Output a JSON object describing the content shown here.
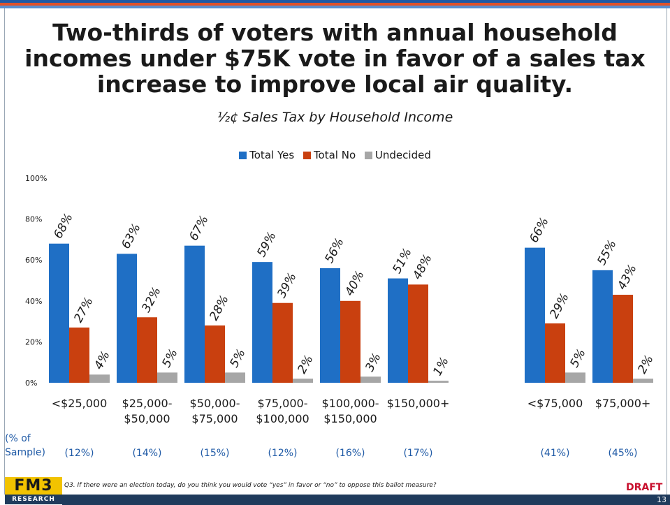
{
  "headline": "Two-thirds of voters with annual household incomes under $75K vote in favor of a sales tax increase to improve local air quality.",
  "chart_data": {
    "type": "bar",
    "title": "½¢ Sales Tax by Household Income",
    "categories": [
      "<$25,000",
      "$25,000-$50,000",
      "$50,000-$75,000",
      "$75,000-$100,000",
      "$100,000-$150,000",
      "$150,000+",
      "<$75,000",
      "$75,000+"
    ],
    "category_lines": [
      [
        "<$25,000"
      ],
      [
        "$25,000-",
        "$50,000"
      ],
      [
        "$50,000-",
        "$75,000"
      ],
      [
        "$75,000-",
        "$100,000"
      ],
      [
        "$100,000-",
        "$150,000"
      ],
      [
        "$150,000+"
      ],
      [
        "<$75,000"
      ],
      [
        "$75,000+"
      ]
    ],
    "series": [
      {
        "name": "Total Yes",
        "color": "#1f6fc5",
        "values": [
          68,
          63,
          67,
          59,
          56,
          51,
          66,
          55
        ]
      },
      {
        "name": "Total No",
        "color": "#c9400f",
        "values": [
          27,
          32,
          28,
          39,
          40,
          48,
          29,
          43
        ]
      },
      {
        "name": "Undecided",
        "color": "#a6a6a6",
        "values": [
          4,
          5,
          5,
          2,
          3,
          1,
          5,
          2
        ]
      }
    ],
    "ylim": [
      0,
      100
    ],
    "yticks": [
      "0%",
      "20%",
      "40%",
      "60%",
      "80%",
      "100%"
    ],
    "legend_position": "top",
    "sample_label_lines": [
      "(% of",
      "Sample)"
    ],
    "sample_shares": [
      "(12%)",
      "(14%)",
      "(15%)",
      "(12%)",
      "(16%)",
      "(17%)",
      "(41%)",
      "(45%)"
    ]
  },
  "logo": {
    "top": "FM3",
    "bottom": "RESEARCH"
  },
  "footnote": "Q3. If there were an election today, do you think you would vote “yes” in favor or “no” to oppose this ballot measure?",
  "draft_label": "DRAFT",
  "page_number": "13"
}
